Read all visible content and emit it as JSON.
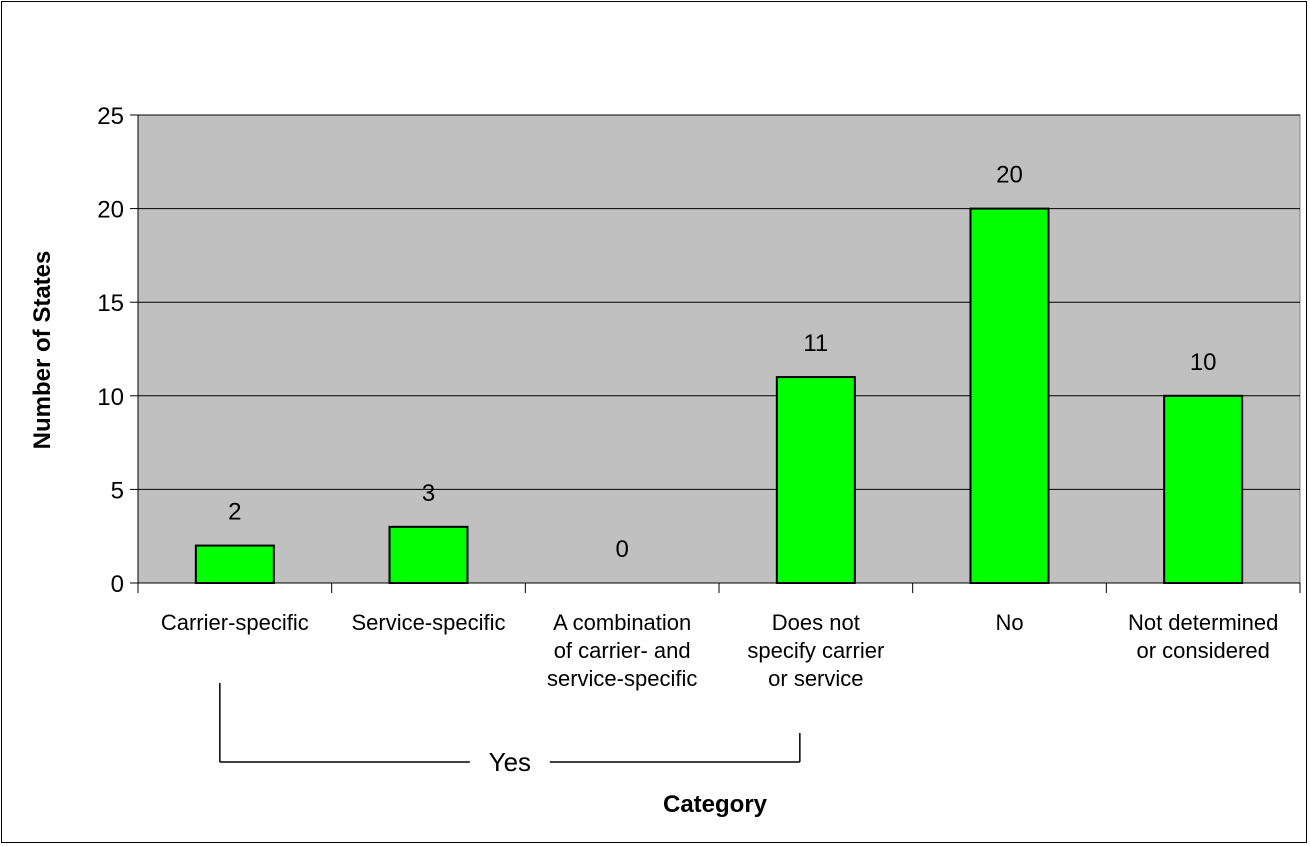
{
  "chart_data": {
    "type": "bar",
    "title": "",
    "xlabel": "Category",
    "ylabel": "Number of States",
    "ylim": [
      0,
      25
    ],
    "yticks": [
      0,
      5,
      10,
      15,
      20,
      25
    ],
    "grid": true,
    "legend": "none",
    "categories": [
      [
        "Carrier-specific"
      ],
      [
        "Service-specific"
      ],
      [
        "A combination",
        "of carrier- and",
        "service-specific"
      ],
      [
        "Does not",
        "specify carrier",
        "or service"
      ],
      [
        "No"
      ],
      [
        "Not determined",
        "or considered"
      ]
    ],
    "values": [
      2,
      3,
      0,
      11,
      20,
      10
    ],
    "group_bracket": {
      "label": "Yes",
      "covers_categories": [
        0,
        1,
        2,
        3
      ]
    },
    "colors": {
      "bar_fill": "#00FF00",
      "bar_stroke": "#000000",
      "plot_background": "#C0C0C0",
      "gridline": "#000000"
    }
  }
}
